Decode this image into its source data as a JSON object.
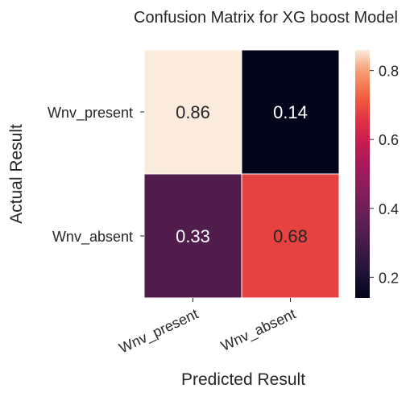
{
  "chart_data": {
    "type": "heatmap",
    "title": "Confusion Matrix for XG boost Model",
    "xlabel": "Predicted Result",
    "ylabel": "Actual Result",
    "x_categories": [
      "Wnv_present",
      "Wnv_absent"
    ],
    "y_categories": [
      "Wnv_present",
      "Wnv_absent"
    ],
    "values": [
      [
        0.86,
        0.14
      ],
      [
        0.33,
        0.68
      ]
    ],
    "value_labels": [
      [
        "0.86",
        "0.14"
      ],
      [
        "0.33",
        "0.68"
      ]
    ],
    "colorbar": {
      "range": [
        0.14,
        0.86
      ],
      "ticks": [
        0.2,
        0.4,
        0.6,
        0.8
      ],
      "tick_labels": [
        "0.2",
        "0.4",
        "0.6",
        "0.8"
      ],
      "colormap": "rocket"
    },
    "colors": {
      "text_dark": "#262626",
      "annotation_light": "#ffffff",
      "annotation_dark": "#262626",
      "cell_border": "#ffffff"
    }
  }
}
